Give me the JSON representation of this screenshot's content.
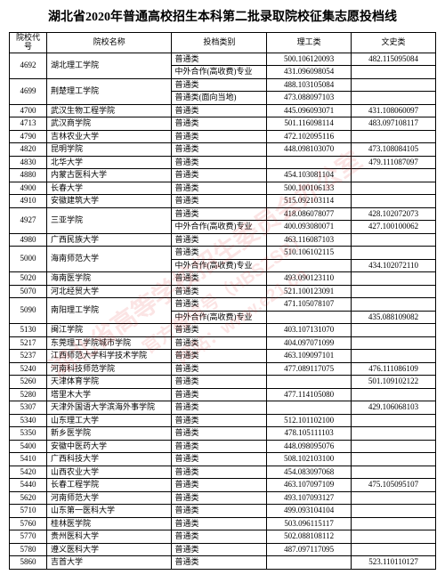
{
  "title": "湖北省2020年普通高校招生本科第二批录取院校征集志愿投档线",
  "headers": {
    "code": "院校代号",
    "name": "院校名称",
    "type": "投档类别",
    "sci": "理工类",
    "art": "文史类"
  },
  "watermark": {
    "line1": "湖北省高等学校招生委员会办公室",
    "line2": "官方微信号（HBSZSB）",
    "line3": "网站：www.e21.cn"
  },
  "colors": {
    "border": "#000000",
    "text": "#000000",
    "watermark": "rgba(220,30,30,0.12)",
    "background": "#ffffff"
  },
  "rows": [
    {
      "code": "4692",
      "name": "湖北理工学院",
      "entries": [
        {
          "type": "普通类",
          "sci": "500.106120093",
          "art": "482.115095084"
        },
        {
          "type": "中外合作(高收费)专业",
          "sci": "431.096098054",
          "art": ""
        }
      ]
    },
    {
      "code": "4699",
      "name": "荆楚理工学院",
      "entries": [
        {
          "type": "普通类",
          "sci": "488.103105084",
          "art": ""
        },
        {
          "type": "普通类(面向当地)",
          "sci": "473.088097103",
          "art": ""
        }
      ]
    },
    {
      "code": "4700",
      "name": "武汉生物工程学院",
      "entries": [
        {
          "type": "普通类",
          "sci": "445.096093071",
          "art": "431.108060097"
        }
      ]
    },
    {
      "code": "4713",
      "name": "武汉商学院",
      "entries": [
        {
          "type": "普通类",
          "sci": "501.116098114",
          "art": "483.097108117"
        }
      ]
    },
    {
      "code": "4790",
      "name": "吉林农业大学",
      "entries": [
        {
          "type": "普通类",
          "sci": "472.102095116",
          "art": ""
        }
      ]
    },
    {
      "code": "4820",
      "name": "昆明学院",
      "entries": [
        {
          "type": "普通类",
          "sci": "448.098103070",
          "art": "473.108084105"
        }
      ]
    },
    {
      "code": "4830",
      "name": "北华大学",
      "entries": [
        {
          "type": "普通类",
          "sci": "",
          "art": "479.111087097"
        }
      ]
    },
    {
      "code": "4880",
      "name": "内蒙古医科大学",
      "entries": [
        {
          "type": "普通类",
          "sci": "454.103081104",
          "art": ""
        }
      ]
    },
    {
      "code": "4900",
      "name": "长春大学",
      "entries": [
        {
          "type": "普通类",
          "sci": "500.100106133",
          "art": ""
        }
      ]
    },
    {
      "code": "4910",
      "name": "安徽建筑大学",
      "entries": [
        {
          "type": "普通类",
          "sci": "515.092103114",
          "art": ""
        }
      ]
    },
    {
      "code": "4927",
      "name": "三亚学院",
      "entries": [
        {
          "type": "普通类",
          "sci": "418.086078077",
          "art": "428.102072073"
        },
        {
          "type": "中外合作(高收费)专业",
          "sci": "400.093080071",
          "art": "427.100100062"
        }
      ]
    },
    {
      "code": "4980",
      "name": "广西民族大学",
      "entries": [
        {
          "type": "普通类",
          "sci": "463.116087103",
          "art": ""
        }
      ]
    },
    {
      "code": "5000",
      "name": "海南师范大学",
      "entries": [
        {
          "type": "普通类",
          "sci": "510.106102115",
          "art": ""
        },
        {
          "type": "中外合作(高收费)专业",
          "sci": "",
          "art": "434.102072110"
        }
      ]
    },
    {
      "code": "5020",
      "name": "海南医学院",
      "entries": [
        {
          "type": "普通类",
          "sci": "493.090123110",
          "art": ""
        }
      ]
    },
    {
      "code": "5070",
      "name": "河北经贸大学",
      "entries": [
        {
          "type": "普通类",
          "sci": "521.100123091",
          "art": ""
        }
      ]
    },
    {
      "code": "5090",
      "name": "南阳理工学院",
      "entries": [
        {
          "type": "普通类",
          "sci": "471.105078107",
          "art": ""
        },
        {
          "type": "中外合作(高收费)专业",
          "sci": "",
          "art": "435.088109082"
        }
      ]
    },
    {
      "code": "5130",
      "name": "闽江学院",
      "entries": [
        {
          "type": "普通类",
          "sci": "403.107131070",
          "art": ""
        }
      ]
    },
    {
      "code": "5217",
      "name": "东莞理工学院城市学院",
      "entries": [
        {
          "type": "普通类",
          "sci": "404.097071099",
          "art": ""
        }
      ]
    },
    {
      "code": "5237",
      "name": "江西师范大学科学技术学院",
      "entries": [
        {
          "type": "普通类",
          "sci": "463.109097101",
          "art": ""
        }
      ]
    },
    {
      "code": "5240",
      "name": "河南科技师范学院",
      "entries": [
        {
          "type": "普通类",
          "sci": "477.089117075",
          "art": "476.111086109"
        }
      ]
    },
    {
      "code": "5260",
      "name": "天津体育学院",
      "entries": [
        {
          "type": "普通类",
          "sci": "",
          "art": "501.109102122"
        }
      ]
    },
    {
      "code": "5280",
      "name": "塔里木大学",
      "entries": [
        {
          "type": "普通类",
          "sci": "477.114105080",
          "art": ""
        }
      ]
    },
    {
      "code": "5307",
      "name": "天津外国语大学滨海外事学院",
      "entries": [
        {
          "type": "普通类",
          "sci": "",
          "art": "429.106068103"
        }
      ]
    },
    {
      "code": "5340",
      "name": "山东理工大学",
      "entries": [
        {
          "type": "普通类",
          "sci": "512.101102100",
          "art": ""
        }
      ]
    },
    {
      "code": "5350",
      "name": "新乡医学院",
      "entries": [
        {
          "type": "普通类",
          "sci": "478.105111103",
          "art": ""
        }
      ]
    },
    {
      "code": "5400",
      "name": "安徽中医药大学",
      "entries": [
        {
          "type": "普通类",
          "sci": "448.098095076",
          "art": ""
        }
      ]
    },
    {
      "code": "5410",
      "name": "广西科技大学",
      "entries": [
        {
          "type": "普通类",
          "sci": "508.102103100",
          "art": ""
        }
      ]
    },
    {
      "code": "5420",
      "name": "山西农业大学",
      "entries": [
        {
          "type": "普通类",
          "sci": "454.083097068",
          "art": ""
        }
      ]
    },
    {
      "code": "5440",
      "name": "长春工程学院",
      "entries": [
        {
          "type": "普通类",
          "sci": "463.107097109",
          "art": "475.105095107"
        }
      ]
    },
    {
      "code": "5620",
      "name": "河南师范大学",
      "entries": [
        {
          "type": "普通类",
          "sci": "493.107093127",
          "art": ""
        }
      ]
    },
    {
      "code": "5710",
      "name": "山东第一医科大学",
      "entries": [
        {
          "type": "普通类",
          "sci": "499.093104104",
          "art": ""
        }
      ]
    },
    {
      "code": "5760",
      "name": "桂林医学院",
      "entries": [
        {
          "type": "普通类",
          "sci": "503.096115117",
          "art": ""
        }
      ]
    },
    {
      "code": "5770",
      "name": "贵州医科大学",
      "entries": [
        {
          "type": "普通类",
          "sci": "502.088108112",
          "art": ""
        }
      ]
    },
    {
      "code": "5780",
      "name": "遵义医科大学",
      "entries": [
        {
          "type": "普通类",
          "sci": "487.097117095",
          "art": ""
        }
      ]
    },
    {
      "code": "5860",
      "name": "吉首大学",
      "entries": [
        {
          "type": "普通类",
          "sci": "",
          "art": "523.110110127"
        }
      ]
    }
  ]
}
